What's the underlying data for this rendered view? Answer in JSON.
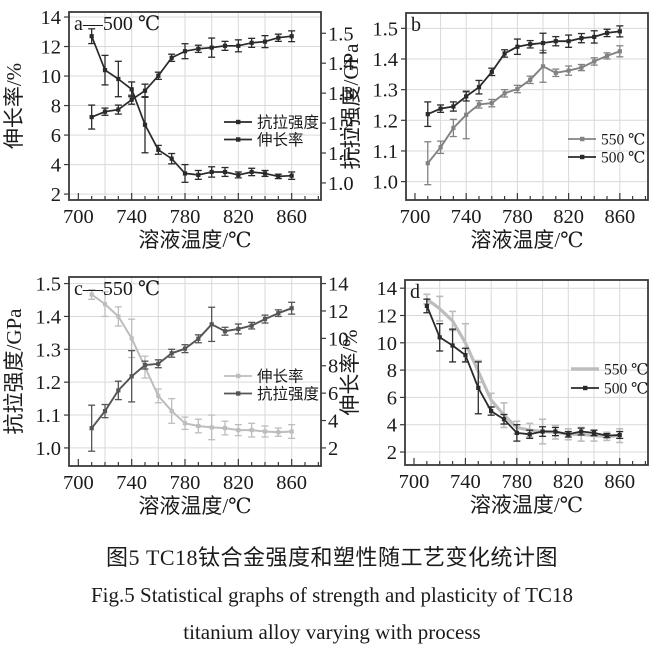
{
  "caption": {
    "zh": "图5 TC18钛合金强度和塑性随工艺变化统计图",
    "en_line1": "Fig.5  Statistical graphs of strength and plasticity of TC18",
    "en_line2": "titanium alloy varying with process"
  },
  "theme": {
    "background": "#ffffff",
    "frame_color": "#3a3a3a",
    "grid_color": "#d9d9d9",
    "text_color": "#1b1b1b",
    "black_series": "#2a2a2a",
    "gray_series": "#828282",
    "light_gray_series": "#bdbdbd",
    "dark_gray_series": "#555555"
  },
  "chart_data": [
    {
      "id": "a",
      "type": "line",
      "panel_label": "a—500 ℃",
      "xlabel": "溶液温度/℃",
      "x": [
        710,
        720,
        730,
        740,
        750,
        760,
        770,
        780,
        790,
        800,
        810,
        820,
        830,
        840,
        850,
        860
      ],
      "xlim": [
        693,
        882
      ],
      "xticks": [
        700,
        740,
        780,
        820,
        860
      ],
      "xminor_step": 10,
      "grid_x": [
        720,
        740,
        760,
        780,
        800,
        820,
        840,
        860
      ],
      "left_axis": {
        "label": "伸长率/%",
        "tick_values": [
          2,
          4,
          6,
          8,
          10,
          12,
          14
        ],
        "tick_labels": [
          "2",
          "4",
          "6",
          "8",
          "10",
          "12",
          "14"
        ],
        "lim": [
          1.6,
          14.34
        ]
      },
      "right_axis": {
        "label": "",
        "tick_values": [
          1.0,
          1.1,
          1.2,
          1.3,
          1.4,
          1.5
        ],
        "tick_labels": [
          "1.0",
          "1.1",
          "1.2",
          "1.3",
          "1.4",
          "1.5"
        ],
        "lim": [
          0.943,
          1.571
        ]
      },
      "legend_position": "right-center",
      "series": [
        {
          "name": "抗拉强度",
          "axis": "right",
          "color": "#2a2a2a",
          "line_width": 1.7,
          "values": [
            1.22,
            1.238,
            1.245,
            1.278,
            1.308,
            1.358,
            1.418,
            1.44,
            1.448,
            1.452,
            1.458,
            1.458,
            1.468,
            1.472,
            1.485,
            1.49
          ],
          "err": [
            0.04,
            0.012,
            0.015,
            0.015,
            0.022,
            0.012,
            0.012,
            0.025,
            0.012,
            0.032,
            0.015,
            0.02,
            0.015,
            0.02,
            0.012,
            0.018
          ]
        },
        {
          "name": "伸长率",
          "axis": "left",
          "color": "#2a2a2a",
          "line_width": 1.7,
          "values": [
            12.7,
            10.4,
            9.8,
            9.1,
            6.7,
            5.0,
            4.4,
            3.4,
            3.3,
            3.5,
            3.5,
            3.3,
            3.5,
            3.4,
            3.2,
            3.25
          ],
          "err": [
            0.5,
            1.0,
            1.2,
            0.5,
            1.9,
            0.3,
            0.35,
            0.6,
            0.3,
            0.35,
            0.3,
            0.2,
            0.25,
            0.2,
            0.15,
            0.25
          ]
        }
      ]
    },
    {
      "id": "b",
      "type": "line",
      "panel_label": "b",
      "xlabel": "溶液温度/℃",
      "x": [
        710,
        720,
        730,
        740,
        750,
        760,
        770,
        780,
        790,
        800,
        810,
        820,
        830,
        840,
        850,
        860
      ],
      "xlim": [
        693,
        882
      ],
      "xticks": [
        700,
        740,
        780,
        820,
        860
      ],
      "xminor_step": 10,
      "grid_x": [
        720,
        740,
        760,
        780,
        800,
        820,
        840,
        860
      ],
      "left_axis": {
        "label": "抗拉强度/GPa",
        "tick_values": [
          1.0,
          1.1,
          1.2,
          1.3,
          1.4,
          1.5
        ],
        "tick_labels": [
          "1.0",
          "1.1",
          "1.2",
          "1.3",
          "1.4",
          "1.5"
        ],
        "lim": [
          0.94,
          1.55
        ]
      },
      "right_axis": null,
      "legend_position": "right-bottom",
      "series": [
        {
          "name": "550 ℃",
          "axis": "left",
          "color": "#828282",
          "line_width": 1.9,
          "values": [
            1.06,
            1.112,
            1.175,
            1.218,
            1.252,
            1.256,
            1.288,
            1.302,
            1.332,
            1.376,
            1.355,
            1.362,
            1.372,
            1.392,
            1.41,
            1.425
          ],
          "err": [
            0.07,
            0.02,
            0.028,
            0.078,
            0.012,
            0.012,
            0.012,
            0.012,
            0.012,
            0.052,
            0.012,
            0.015,
            0.01,
            0.012,
            0.01,
            0.018
          ]
        },
        {
          "name": "500 ℃",
          "axis": "left",
          "color": "#2a2a2a",
          "line_width": 1.8,
          "values": [
            1.22,
            1.238,
            1.245,
            1.278,
            1.308,
            1.358,
            1.418,
            1.44,
            1.448,
            1.452,
            1.458,
            1.458,
            1.468,
            1.472,
            1.485,
            1.49
          ],
          "err": [
            0.04,
            0.012,
            0.015,
            0.015,
            0.022,
            0.012,
            0.012,
            0.025,
            0.012,
            0.032,
            0.015,
            0.02,
            0.015,
            0.02,
            0.012,
            0.018
          ]
        }
      ]
    },
    {
      "id": "c",
      "type": "line",
      "panel_label": "c—550 ℃",
      "xlabel": "溶液温度/℃",
      "x": [
        710,
        720,
        730,
        740,
        750,
        760,
        770,
        780,
        790,
        800,
        810,
        820,
        830,
        840,
        850,
        860
      ],
      "xlim": [
        693,
        882
      ],
      "xticks": [
        700,
        740,
        780,
        820,
        860
      ],
      "xminor_step": 10,
      "grid_x": [
        720,
        740,
        760,
        780,
        800,
        820,
        840,
        860
      ],
      "left_axis": {
        "label": "抗拉强度/GPa",
        "tick_values": [
          1.0,
          1.1,
          1.2,
          1.3,
          1.4,
          1.5
        ],
        "tick_labels": [
          "1.0",
          "1.1",
          "1.2",
          "1.3",
          "1.4",
          "1.5"
        ],
        "lim": [
          0.945,
          1.52
        ]
      },
      "right_axis": {
        "label": "",
        "tick_values": [
          2,
          4,
          6,
          8,
          10,
          12,
          14
        ],
        "tick_labels": [
          "2",
          "4",
          "6",
          "8",
          "10",
          "12",
          "14"
        ],
        "lim": [
          0.68,
          14.48
        ]
      },
      "legend_position": "right-center",
      "series": [
        {
          "name": "伸长率",
          "axis": "right",
          "color": "#bdbdbd",
          "line_width": 2.0,
          "values": [
            13.2,
            12.5,
            11.6,
            10.0,
            7.9,
            5.8,
            4.7,
            3.8,
            3.6,
            3.5,
            3.45,
            3.3,
            3.3,
            3.2,
            3.15,
            3.2
          ],
          "err": [
            0.35,
            0.9,
            0.7,
            1.4,
            0.8,
            0.5,
            0.9,
            0.45,
            0.5,
            0.9,
            0.5,
            0.4,
            0.5,
            0.4,
            0.3,
            0.5
          ]
        },
        {
          "name": "抗拉强度",
          "axis": "left",
          "color": "#555555",
          "line_width": 1.9,
          "values": [
            1.06,
            1.112,
            1.175,
            1.218,
            1.252,
            1.256,
            1.288,
            1.302,
            1.332,
            1.376,
            1.355,
            1.362,
            1.372,
            1.392,
            1.41,
            1.425
          ],
          "err": [
            0.07,
            0.02,
            0.028,
            0.078,
            0.012,
            0.012,
            0.012,
            0.012,
            0.012,
            0.052,
            0.012,
            0.015,
            0.01,
            0.012,
            0.01,
            0.018
          ]
        }
      ]
    },
    {
      "id": "d",
      "type": "line",
      "panel_label": "d",
      "xlabel": "溶液温度/℃",
      "x": [
        710,
        720,
        730,
        740,
        750,
        760,
        770,
        780,
        790,
        800,
        810,
        820,
        830,
        840,
        850,
        860
      ],
      "xlim": [
        693,
        882
      ],
      "xticks": [
        700,
        740,
        780,
        820,
        860
      ],
      "xminor_step": 10,
      "grid_x": [
        720,
        740,
        760,
        780,
        800,
        820,
        840,
        860
      ],
      "left_axis": {
        "label": "伸长率/%",
        "tick_values": [
          2,
          4,
          6,
          8,
          10,
          12,
          14
        ],
        "tick_labels": [
          "2",
          "4",
          "6",
          "8",
          "10",
          "12",
          "14"
        ],
        "lim": [
          1.05,
          14.6
        ]
      },
      "right_axis": null,
      "legend_position": "right-center",
      "series": [
        {
          "name": "550 ℃",
          "axis": "left",
          "color": "#bdbdbd",
          "line_width": 3.2,
          "values": [
            13.2,
            12.5,
            11.6,
            10.0,
            7.9,
            5.8,
            4.7,
            3.8,
            3.6,
            3.5,
            3.45,
            3.3,
            3.3,
            3.2,
            3.15,
            3.2
          ],
          "err": [
            0.35,
            0.9,
            0.7,
            1.4,
            0.8,
            0.5,
            0.9,
            0.45,
            0.5,
            0.9,
            0.5,
            0.4,
            0.5,
            0.4,
            0.3,
            0.5
          ]
        },
        {
          "name": "500 ℃",
          "axis": "left",
          "color": "#2a2a2a",
          "line_width": 1.8,
          "values": [
            12.7,
            10.4,
            9.8,
            9.1,
            6.7,
            5.0,
            4.4,
            3.4,
            3.3,
            3.5,
            3.5,
            3.3,
            3.5,
            3.4,
            3.2,
            3.25
          ],
          "err": [
            0.5,
            1.0,
            1.2,
            0.5,
            1.9,
            0.3,
            0.35,
            0.6,
            0.3,
            0.35,
            0.3,
            0.2,
            0.25,
            0.2,
            0.15,
            0.25
          ]
        }
      ]
    }
  ]
}
